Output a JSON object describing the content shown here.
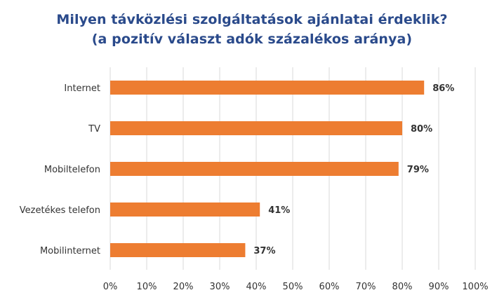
{
  "chart_data": {
    "type": "bar",
    "orientation": "horizontal",
    "title": "Milyen távközlési szolgáltatások ajánlatai érdeklik?",
    "subtitle": "(a pozitív választ adók százalékos aránya)",
    "categories": [
      "Internet",
      "TV",
      "Mobiltelefon",
      "Vezetékes telefon",
      "Mobilinternet"
    ],
    "values": [
      86,
      80,
      79,
      41,
      37
    ],
    "data_labels": [
      "86%",
      "80%",
      "79%",
      "41%",
      "37%"
    ],
    "xlim": [
      0,
      100
    ],
    "x_ticks": [
      0,
      10,
      20,
      30,
      40,
      50,
      60,
      70,
      80,
      90,
      100
    ],
    "x_tick_labels": [
      "0%",
      "10%",
      "20%",
      "30%",
      "40%",
      "50%",
      "60%",
      "70%",
      "80%",
      "90%",
      "100%"
    ],
    "grid": "vertical",
    "legend": "none",
    "bar_color": "#ed7d31",
    "title_color": "#2a4a8b",
    "grid_color": "#d9d9d9"
  }
}
